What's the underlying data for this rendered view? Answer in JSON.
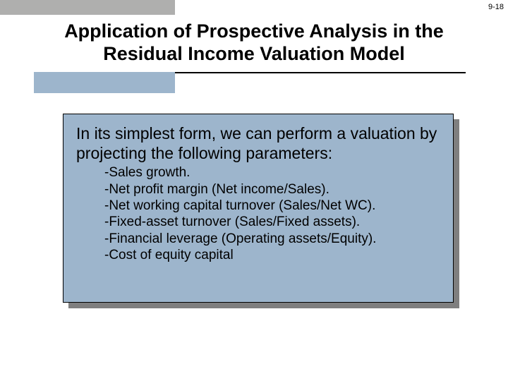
{
  "meta": {
    "slide_number": "9-18"
  },
  "title": "Application of Prospective Analysis in the Residual Income Valuation Model",
  "content": {
    "intro": "In its simplest form, we can perform a valuation by projecting the following parameters:",
    "parameters": [
      "-Sales growth.",
      "-Net profit margin (Net income/Sales).",
      "-Net working capital turnover (Sales/Net WC).",
      "-Fixed-asset turnover (Sales/Fixed assets).",
      "-Financial leverage (Operating assets/Equity).",
      "-Cost of equity capital"
    ]
  },
  "styling": {
    "stripe_color": "#afafae",
    "accent_blue": "#9db5cc",
    "shadow_color": "#7f7f7f",
    "title_fontsize": 27,
    "intro_fontsize": 23,
    "param_fontsize": 19,
    "slide_width": 720,
    "slide_height": 540
  }
}
